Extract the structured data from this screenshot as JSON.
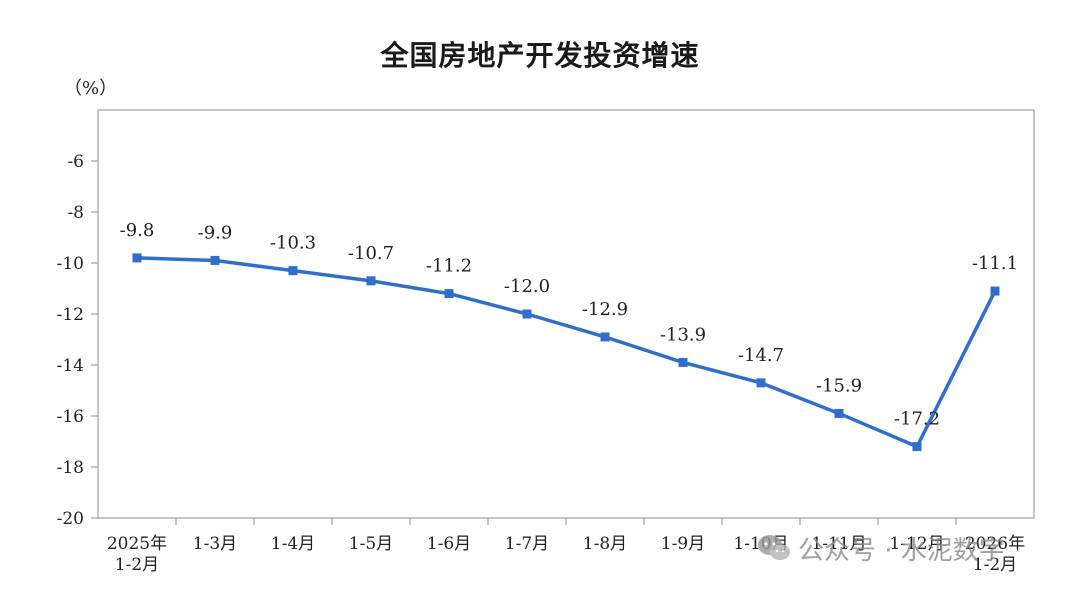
{
  "chart_data": {
    "type": "line",
    "title": "全国房地产开发投资增速",
    "unit": "（%）",
    "xlabel": "",
    "ylabel": "",
    "categories": [
      [
        "2025年",
        "1-2月"
      ],
      [
        "1-3月"
      ],
      [
        "1-4月"
      ],
      [
        "1-5月"
      ],
      [
        "1-6月"
      ],
      [
        "1-7月"
      ],
      [
        "1-8月"
      ],
      [
        "1-9月"
      ],
      [
        "1-10月"
      ],
      [
        "1-11月"
      ],
      [
        "1-12月"
      ],
      [
        "2026年",
        "1-2月"
      ]
    ],
    "series": [
      {
        "values": [
          -9.8,
          -9.9,
          -10.3,
          -10.7,
          -11.2,
          -12.0,
          -12.9,
          -13.9,
          -14.7,
          -15.9,
          -17.2,
          -11.1
        ],
        "labels": [
          "-9.8",
          "-9.9",
          "-10.3",
          "-10.7",
          "-11.2",
          "-12.0",
          "-12.9",
          "-13.9",
          "-14.7",
          "-15.9",
          "-17.2",
          "-11.1"
        ],
        "color": "#2f6fc9"
      }
    ],
    "ylim": [
      -20,
      -4
    ],
    "yticks": [
      -6,
      -8,
      -10,
      -12,
      -14,
      -16,
      -18,
      -20
    ],
    "ytick_labels": [
      "-6",
      "-8",
      "-10",
      "-12",
      "-14",
      "-16",
      "-18",
      "-20"
    ],
    "grid": false,
    "legend": "none"
  },
  "watermark": {
    "icon": "wechat-icon",
    "text": "公众号 · 水泥数字"
  }
}
